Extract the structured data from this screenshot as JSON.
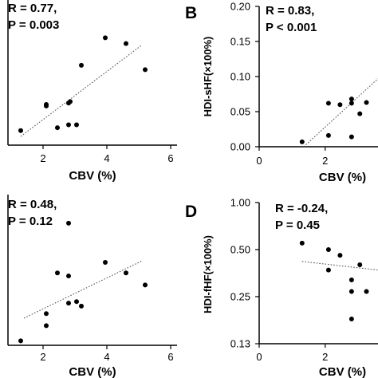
{
  "chart_data": [
    {
      "type": "scatter",
      "panel_label": "",
      "xlabel": "CBV (%)",
      "ylabel": "",
      "xlim": [
        0.9,
        6.2
      ],
      "ylim": [
        0,
        1
      ],
      "x_ticks": [
        "2",
        "4",
        "6"
      ],
      "x_tick_values": [
        2,
        4,
        6
      ],
      "y_ticks": [],
      "stats": [
        "R = 0.77,",
        "P = 0.003"
      ],
      "points": [
        {
          "x": 1.3,
          "y": 0.1
        },
        {
          "x": 2.1,
          "y": 0.27
        },
        {
          "x": 2.1,
          "y": 0.28
        },
        {
          "x": 2.45,
          "y": 0.12
        },
        {
          "x": 2.8,
          "y": 0.14
        },
        {
          "x": 2.8,
          "y": 0.29
        },
        {
          "x": 2.85,
          "y": 0.3
        },
        {
          "x": 3.05,
          "y": 0.14
        },
        {
          "x": 3.2,
          "y": 0.55
        },
        {
          "x": 3.95,
          "y": 0.74
        },
        {
          "x": 4.6,
          "y": 0.7
        },
        {
          "x": 5.2,
          "y": 0.52
        }
      ],
      "trend": [
        {
          "x": 1.3,
          "y": 0.06
        },
        {
          "x": 5.1,
          "y": 0.69
        }
      ]
    },
    {
      "type": "scatter",
      "panel_label": "B",
      "xlabel": "CBV (%)",
      "ylabel": "HDI-sHF(×100%)",
      "xlim": [
        0,
        3.6
      ],
      "ylim": [
        0,
        0.2
      ],
      "x_ticks": [
        "0",
        "2"
      ],
      "x_tick_values": [
        0,
        2
      ],
      "y_ticks": [
        "0.20",
        "0.15",
        "0.10",
        "0.05",
        "0.00"
      ],
      "y_tick_values": [
        0.2,
        0.15,
        0.1,
        0.05,
        0.0
      ],
      "stats": [
        "R = 0.83,",
        "P < 0.001"
      ],
      "points": [
        {
          "x": 1.3,
          "y": 0.007
        },
        {
          "x": 2.1,
          "y": 0.016
        },
        {
          "x": 2.1,
          "y": 0.062
        },
        {
          "x": 2.45,
          "y": 0.06
        },
        {
          "x": 2.8,
          "y": 0.014
        },
        {
          "x": 2.8,
          "y": 0.062
        },
        {
          "x": 2.8,
          "y": 0.068
        },
        {
          "x": 3.05,
          "y": 0.047
        },
        {
          "x": 3.25,
          "y": 0.063
        }
      ],
      "trend": [
        {
          "x": 1.35,
          "y": 0.0
        },
        {
          "x": 3.6,
          "y": 0.097
        }
      ]
    },
    {
      "type": "scatter",
      "panel_label": "",
      "xlabel": "CBV (%)",
      "ylabel": "",
      "xlim": [
        0.9,
        6.2
      ],
      "ylim": [
        0,
        1
      ],
      "x_ticks": [
        "2",
        "4",
        "6"
      ],
      "x_tick_values": [
        2,
        4,
        6
      ],
      "y_ticks": [],
      "stats": [
        "R = 0.48,",
        "P = 0.12"
      ],
      "points": [
        {
          "x": 1.3,
          "y": 0.03
        },
        {
          "x": 2.1,
          "y": 0.13
        },
        {
          "x": 2.1,
          "y": 0.21
        },
        {
          "x": 2.45,
          "y": 0.48
        },
        {
          "x": 2.8,
          "y": 0.81
        },
        {
          "x": 2.8,
          "y": 0.28
        },
        {
          "x": 2.8,
          "y": 0.46
        },
        {
          "x": 3.05,
          "y": 0.29
        },
        {
          "x": 3.2,
          "y": 0.26
        },
        {
          "x": 3.95,
          "y": 0.55
        },
        {
          "x": 4.6,
          "y": 0.48
        },
        {
          "x": 5.2,
          "y": 0.4
        }
      ],
      "trend": [
        {
          "x": 1.4,
          "y": 0.18
        },
        {
          "x": 5.1,
          "y": 0.56
        }
      ]
    },
    {
      "type": "scatter",
      "panel_label": "D",
      "xlabel": "CBV (%)",
      "ylabel": "HDI-fHF(×100%)",
      "xlim": [
        0,
        3.6
      ],
      "ylim": [
        0.125,
        1.0
      ],
      "y_scale": "log",
      "x_ticks": [
        "0",
        "2"
      ],
      "x_tick_values": [
        0,
        2
      ],
      "y_ticks": [
        "1.00",
        "0.50",
        "0.25",
        "0.13"
      ],
      "y_tick_values": [
        1.0,
        0.5,
        0.25,
        0.125
      ],
      "stats": [
        "R = -0.24,",
        "P = 0.45"
      ],
      "points": [
        {
          "x": 1.3,
          "y": 0.55
        },
        {
          "x": 2.1,
          "y": 0.5
        },
        {
          "x": 2.1,
          "y": 0.37
        },
        {
          "x": 2.45,
          "y": 0.46
        },
        {
          "x": 2.8,
          "y": 0.32
        },
        {
          "x": 2.8,
          "y": 0.27
        },
        {
          "x": 2.8,
          "y": 0.18
        },
        {
          "x": 3.05,
          "y": 0.4
        },
        {
          "x": 3.25,
          "y": 0.27
        }
      ],
      "trend": [
        {
          "x": 1.3,
          "y": 0.42
        },
        {
          "x": 3.6,
          "y": 0.37
        }
      ]
    }
  ]
}
